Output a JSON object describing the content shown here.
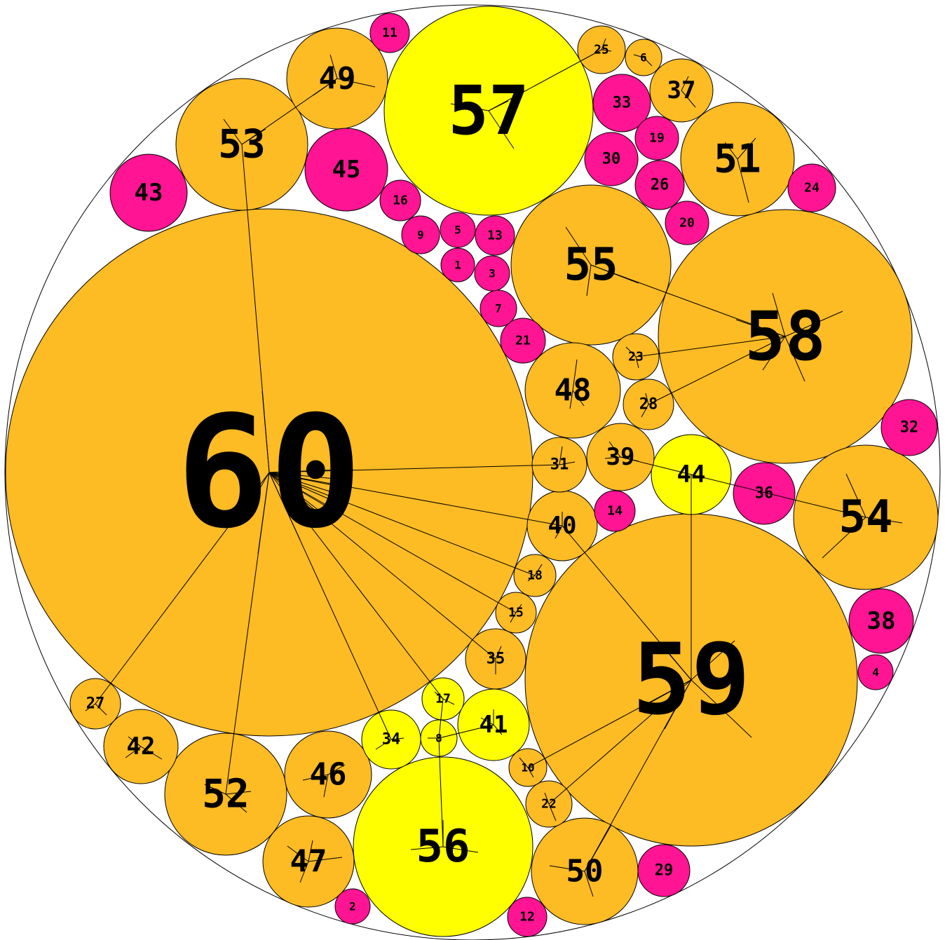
{
  "colors": {
    "background": "#ffffff",
    "outline": "#000000",
    "orange": "#fdbb24",
    "yellow": "#ffff00",
    "magenta": "#ff1493"
  },
  "nodes": [
    {
      "label": "1",
      "color": "magenta"
    },
    {
      "label": "2",
      "color": "magenta"
    },
    {
      "label": "3",
      "color": "magenta"
    },
    {
      "label": "4",
      "color": "magenta"
    },
    {
      "label": "5",
      "color": "magenta"
    },
    {
      "label": "6",
      "color": "orange"
    },
    {
      "label": "7",
      "color": "magenta"
    },
    {
      "label": "8",
      "color": "yellow"
    },
    {
      "label": "9",
      "color": "magenta"
    },
    {
      "label": "10",
      "color": "orange"
    },
    {
      "label": "11",
      "color": "magenta"
    },
    {
      "label": "12",
      "color": "magenta"
    },
    {
      "label": "13",
      "color": "magenta"
    },
    {
      "label": "14",
      "color": "magenta"
    },
    {
      "label": "15",
      "color": "orange"
    },
    {
      "label": "16",
      "color": "magenta"
    },
    {
      "label": "17",
      "color": "yellow"
    },
    {
      "label": "18",
      "color": "orange"
    },
    {
      "label": "19",
      "color": "magenta"
    },
    {
      "label": "20",
      "color": "magenta"
    },
    {
      "label": "21",
      "color": "magenta"
    },
    {
      "label": "22",
      "color": "orange"
    },
    {
      "label": "23",
      "color": "orange"
    },
    {
      "label": "24",
      "color": "magenta"
    },
    {
      "label": "25",
      "color": "orange"
    },
    {
      "label": "26",
      "color": "magenta"
    },
    {
      "label": "27",
      "color": "orange"
    },
    {
      "label": "28",
      "color": "orange"
    },
    {
      "label": "29",
      "color": "magenta"
    },
    {
      "label": "30",
      "color": "magenta"
    },
    {
      "label": "31",
      "color": "orange"
    },
    {
      "label": "32",
      "color": "magenta"
    },
    {
      "label": "33",
      "color": "magenta"
    },
    {
      "label": "34",
      "color": "yellow"
    },
    {
      "label": "35",
      "color": "orange"
    },
    {
      "label": "36",
      "color": "magenta"
    },
    {
      "label": "37",
      "color": "orange"
    },
    {
      "label": "38",
      "color": "magenta"
    },
    {
      "label": "39",
      "color": "orange"
    },
    {
      "label": "40",
      "color": "orange"
    },
    {
      "label": "41",
      "color": "yellow"
    },
    {
      "label": "42",
      "color": "orange"
    },
    {
      "label": "43",
      "color": "magenta"
    },
    {
      "label": "44",
      "color": "yellow"
    },
    {
      "label": "45",
      "color": "magenta"
    },
    {
      "label": "46",
      "color": "orange"
    },
    {
      "label": "47",
      "color": "orange"
    },
    {
      "label": "48",
      "color": "orange"
    },
    {
      "label": "49",
      "color": "orange"
    },
    {
      "label": "50",
      "color": "orange"
    },
    {
      "label": "51",
      "color": "orange"
    },
    {
      "label": "52",
      "color": "orange"
    },
    {
      "label": "53",
      "color": "orange"
    },
    {
      "label": "54",
      "color": "orange"
    },
    {
      "label": "55",
      "color": "orange"
    },
    {
      "label": "56",
      "color": "yellow"
    },
    {
      "label": "57",
      "color": "yellow"
    },
    {
      "label": "58",
      "color": "orange"
    },
    {
      "label": "59",
      "color": "orange"
    },
    {
      "label": "60",
      "color": "orange"
    }
  ],
  "links": [
    [
      "60",
      "31"
    ],
    [
      "60",
      "40"
    ],
    [
      "60",
      "18"
    ],
    [
      "60",
      "15"
    ],
    [
      "60",
      "35"
    ],
    [
      "60",
      "17"
    ],
    [
      "60",
      "34"
    ],
    [
      "60",
      "52"
    ],
    [
      "60",
      "27"
    ],
    [
      "60",
      "53"
    ],
    [
      "59",
      "44"
    ],
    [
      "59",
      "40"
    ],
    [
      "59",
      "10"
    ],
    [
      "59",
      "22"
    ],
    [
      "59",
      "50"
    ],
    [
      "58",
      "23"
    ],
    [
      "58",
      "28"
    ],
    [
      "58",
      "55"
    ],
    [
      "57",
      "25"
    ],
    [
      "53",
      "49"
    ],
    [
      "56",
      "8"
    ],
    [
      "8",
      "17"
    ],
    [
      "8",
      "41"
    ],
    [
      "44",
      "39"
    ],
    [
      "54",
      "44"
    ]
  ]
}
